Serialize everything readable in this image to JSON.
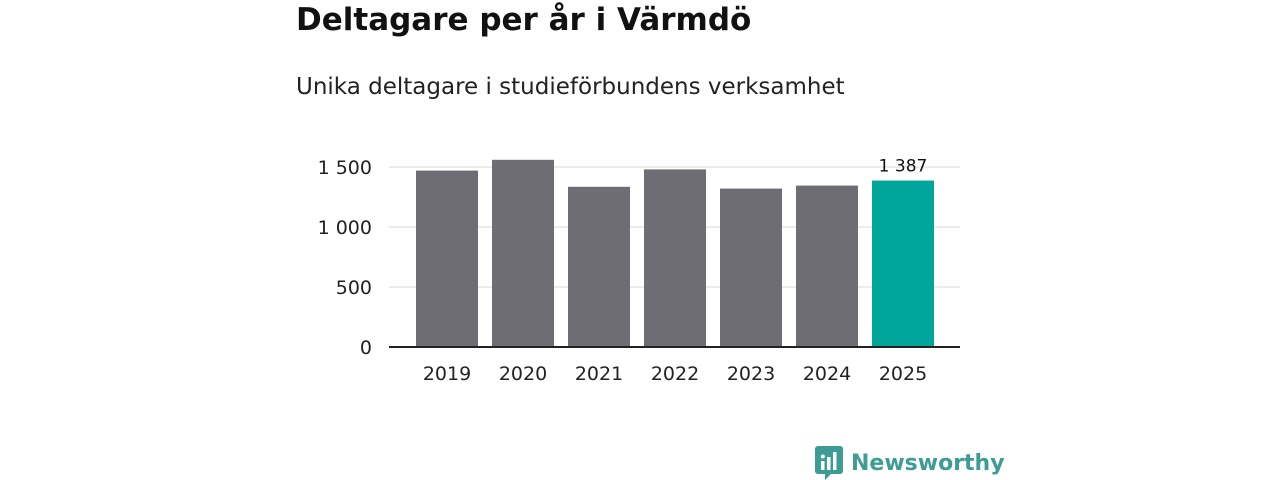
{
  "chart_data": {
    "type": "bar",
    "title": "Deltagare per år i Värmdö",
    "subtitle": "Unika deltagare i studieförbundens verksamhet",
    "categories": [
      "2019",
      "2020",
      "2021",
      "2022",
      "2023",
      "2024",
      "2025"
    ],
    "values": [
      1470,
      1560,
      1335,
      1480,
      1320,
      1345,
      1387
    ],
    "highlight_index": 6,
    "data_labels": [
      {
        "index": 6,
        "text": "1 387"
      }
    ],
    "yticks": [
      {
        "value": 0,
        "label": "0"
      },
      {
        "value": 500,
        "label": "500"
      },
      {
        "value": 1000,
        "label": "1 000"
      },
      {
        "value": 1500,
        "label": "1 500"
      }
    ],
    "ylim": [
      0,
      1500
    ],
    "xlabel": "",
    "ylabel": "",
    "grid": true,
    "colors": {
      "bar": "#6e6d73",
      "highlight": "#00a69a",
      "grid": "#d9d9d9",
      "axis": "#222222",
      "text": "#222222"
    }
  },
  "brand": {
    "name": "Newsworthy",
    "icon": "newsworthy-logo-icon",
    "color": "#3d9c93"
  }
}
